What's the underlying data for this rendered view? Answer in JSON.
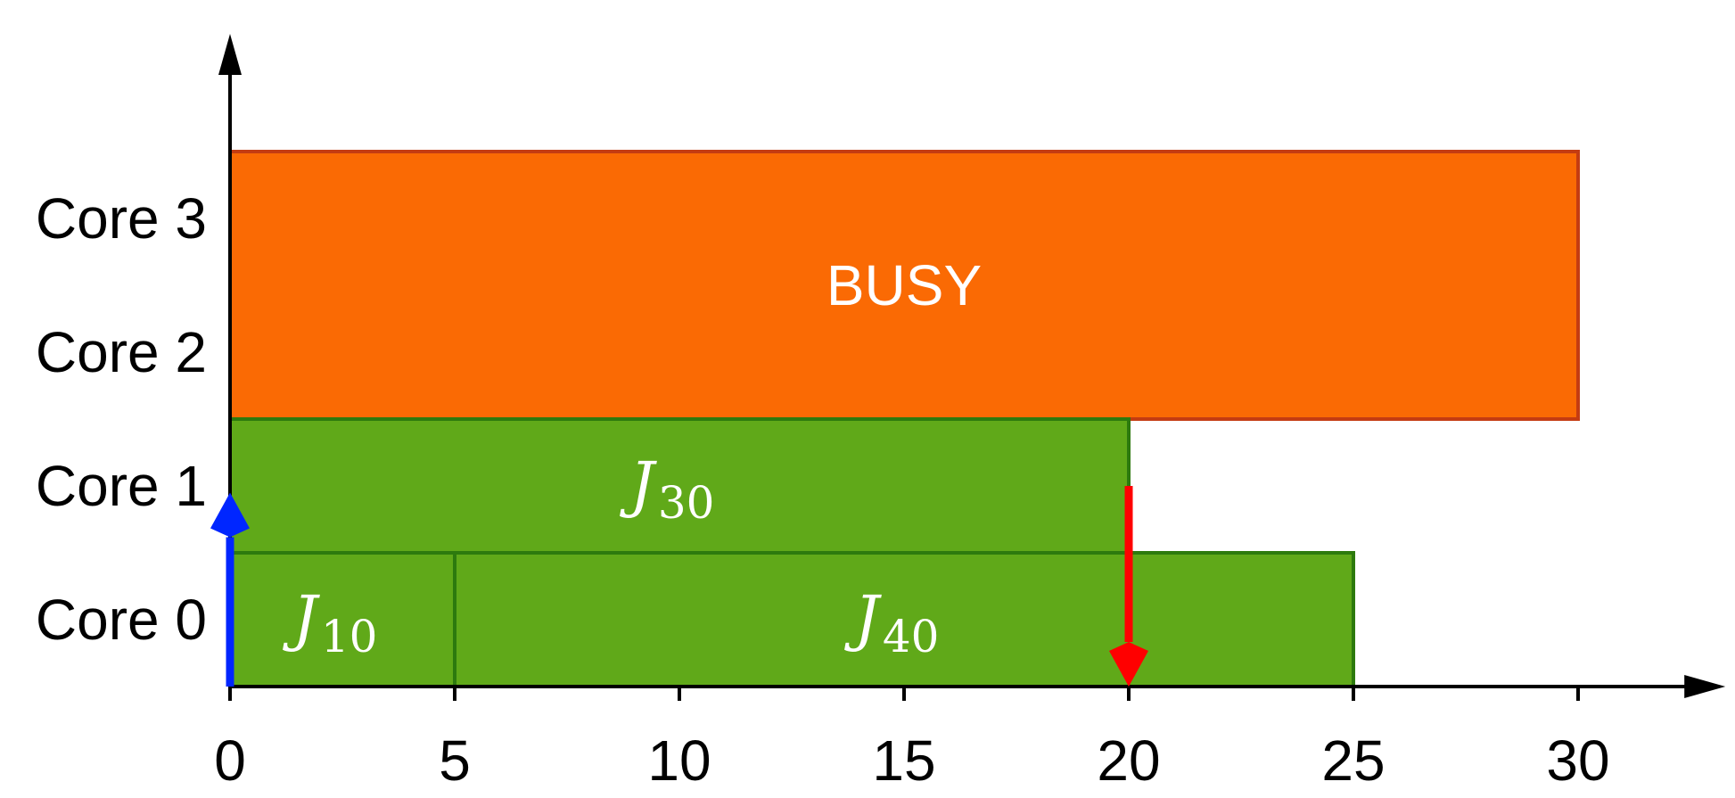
{
  "chart_data": {
    "type": "gantt",
    "y_categories": [
      "Core 0",
      "Core 1",
      "Core 2",
      "Core 3"
    ],
    "x_ticks": [
      0,
      5,
      10,
      15,
      20,
      25,
      30
    ],
    "xlim": [
      0,
      33
    ],
    "bars": [
      {
        "label": "BUSY",
        "cores": [
          2,
          3
        ],
        "start": 0,
        "end": 30,
        "fill": "#fa6a04",
        "stroke": "#c43c12",
        "style": "text"
      },
      {
        "label": "J",
        "sub": "30",
        "cores": [
          1,
          1
        ],
        "start": 0,
        "end": 20,
        "fill": "#60a919",
        "stroke": "#2d7a0e",
        "style": "math"
      },
      {
        "label": "J",
        "sub": "10",
        "cores": [
          0,
          0
        ],
        "start": 0,
        "end": 5,
        "fill": "#60a919",
        "stroke": "#2d7a0e",
        "style": "math"
      },
      {
        "label": "J",
        "sub": "40",
        "cores": [
          0,
          0
        ],
        "start": 5,
        "end": 25,
        "fill": "#60a919",
        "stroke": "#2d7a0e",
        "style": "math"
      }
    ],
    "events": [
      {
        "time": 0,
        "direction": "up",
        "from_core": 0,
        "to_core": 1.45,
        "color": "#0026ff"
      },
      {
        "time": 20,
        "direction": "down",
        "from_core": 1.5,
        "to_core": 0,
        "color": "#ff0000"
      }
    ]
  }
}
